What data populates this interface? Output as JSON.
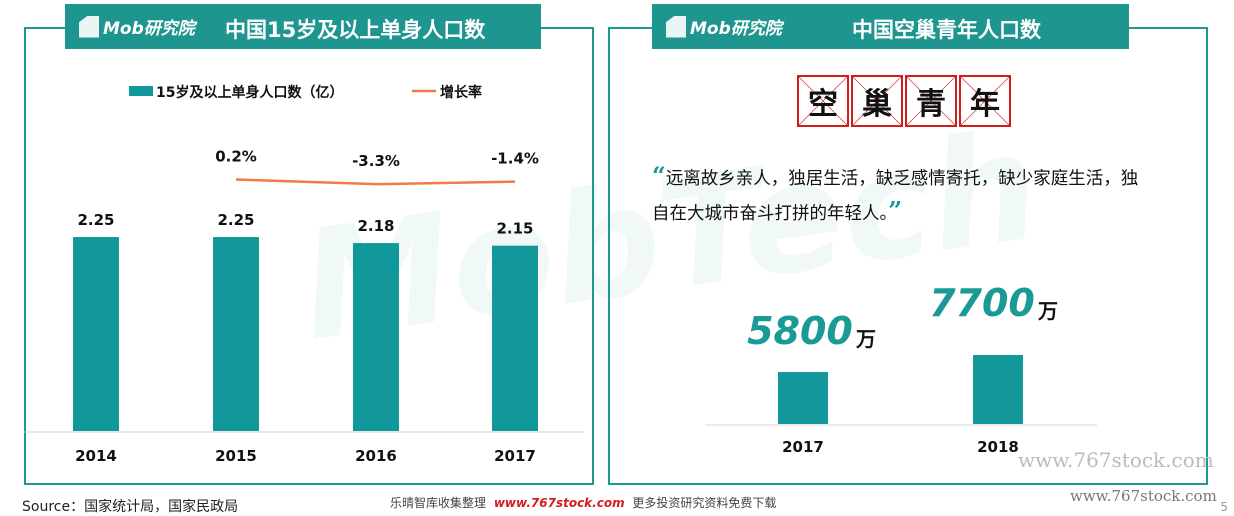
{
  "left_panel": {
    "logo": "Mob研究院",
    "title": "中国15岁及以上单身人口数",
    "legend": {
      "bar_label": "15岁及以上单身人口数（亿）",
      "line_label": "增长率"
    }
  },
  "right_panel": {
    "logo": "Mob研究院",
    "title": "中国空巢青年人口数",
    "box_chars": [
      "空",
      "巢",
      "青",
      "年"
    ],
    "quote_open": "“",
    "quote_text": "远离故乡亲人，独居生活，缺乏感情寄托，缺少家庭生活，独自在大城市奋斗打拼的年轻人。",
    "quote_close": "”"
  },
  "chart_data": [
    {
      "type": "bar",
      "title": "中国15岁及以上单身人口数",
      "categories": [
        "2014",
        "2015",
        "2016",
        "2017"
      ],
      "series": [
        {
          "name": "15岁及以上单身人口数（亿）",
          "type": "bar",
          "values": [
            2.25,
            2.25,
            2.18,
            2.15
          ],
          "labels": [
            "2.25",
            "2.25",
            "2.18",
            "2.15"
          ]
        },
        {
          "name": "增长率",
          "type": "line",
          "x": [
            "2015",
            "2016",
            "2017"
          ],
          "values": [
            0.2,
            -3.3,
            -1.4
          ],
          "labels": [
            "0.2%",
            "-3.3%",
            "-1.4%"
          ]
        }
      ],
      "colors": {
        "bar": "#12989a",
        "line": "#f07c4a"
      },
      "legend": "top",
      "grid": false
    },
    {
      "type": "bar",
      "title": "中国空巢青年人口数",
      "categories": [
        "2017",
        "2018"
      ],
      "values": [
        5800,
        7700
      ],
      "value_labels": [
        "5800",
        "7700"
      ],
      "unit": "万",
      "colors": {
        "bar": "#12989a",
        "label": "#1b9a95"
      },
      "grid": false
    }
  ],
  "footer": {
    "source": "Source：国家统计局，国家民政局",
    "promo_prefix": "乐晴智库收集整理",
    "promo_site": "www.767stock.com",
    "promo_suffix": "更多投资研究资料免费下载",
    "watermark_1": "www.767stock.com",
    "watermark_2": "www.767stock.com",
    "page": "5"
  }
}
